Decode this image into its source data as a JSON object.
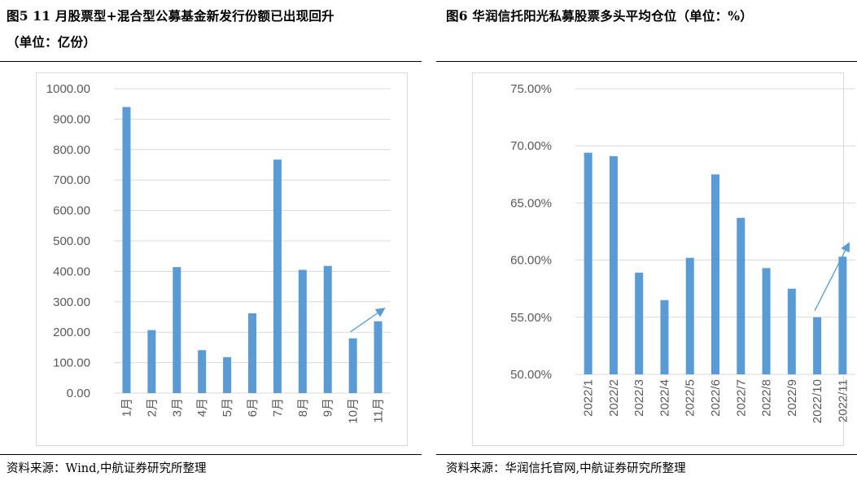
{
  "left": {
    "title_line1": "图5  11 月股票型+混合型公募基金新发行份额已出现回升",
    "title_line2": "（单位：亿份）",
    "source": "资料来源：Wind,中航证券研究所整理"
  },
  "right": {
    "title_line1": "图6  华润信托阳光私募股票多头平均仓位（单位：%）",
    "source": "资料来源：华润信托官网,中航证券研究所整理"
  },
  "colors": {
    "bar": "#5b9bd5",
    "gridline": "#d9d9d9",
    "axis_text": "#595959"
  },
  "chart_data": [
    {
      "type": "bar",
      "categories": [
        "1月",
        "2月",
        "3月",
        "4月",
        "5月",
        "6月",
        "7月",
        "8月",
        "9月",
        "10月",
        "11月"
      ],
      "values": [
        940,
        207,
        414,
        141,
        118,
        262,
        767,
        405,
        418,
        180,
        236
      ],
      "ylim": [
        0,
        1000
      ],
      "yticks": [
        "0.00",
        "100.00",
        "200.00",
        "300.00",
        "400.00",
        "500.00",
        "600.00",
        "700.00",
        "800.00",
        "900.00",
        "1000.00"
      ],
      "grid": true,
      "annotation": {
        "type": "arrow",
        "from_index": 9,
        "to_index": 10
      }
    },
    {
      "type": "bar",
      "categories": [
        "2022/1",
        "2022/2",
        "2022/3",
        "2022/4",
        "2022/5",
        "2022/6",
        "2022/7",
        "2022/8",
        "2022/9",
        "2022/10",
        "2022/11"
      ],
      "values": [
        69.4,
        69.1,
        58.9,
        56.5,
        60.2,
        67.5,
        63.7,
        59.3,
        57.5,
        55.0,
        60.3
      ],
      "ylim": [
        50,
        75
      ],
      "yticks": [
        "50.00%",
        "55.00%",
        "60.00%",
        "65.00%",
        "70.00%",
        "75.00%"
      ],
      "grid": true,
      "annotation": {
        "type": "arrow",
        "from_index": 9,
        "to_index": 10
      }
    }
  ]
}
